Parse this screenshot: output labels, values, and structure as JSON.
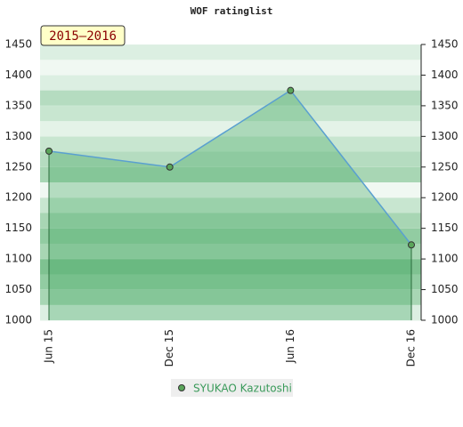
{
  "chart_data": {
    "type": "area",
    "title": "WOF ratinglist",
    "subtitle": "2015–2016",
    "categories": [
      "Jun 15",
      "Dec 15",
      "Jun 16",
      "Dec 16"
    ],
    "series": [
      {
        "name": "SYUKAO Kazutoshi",
        "color": "#5aa0d0",
        "values": [
          1276,
          1250,
          1375,
          1123
        ]
      }
    ],
    "ylim": [
      1000,
      1450
    ],
    "yticks": [
      1000,
      1050,
      1100,
      1150,
      1200,
      1250,
      1300,
      1350,
      1400,
      1450
    ],
    "y2lim": [
      1000,
      1450
    ],
    "y2ticks": [
      1000,
      1050,
      1100,
      1150,
      1200,
      1250,
      1300,
      1350,
      1400,
      1450
    ],
    "grid": true
  }
}
